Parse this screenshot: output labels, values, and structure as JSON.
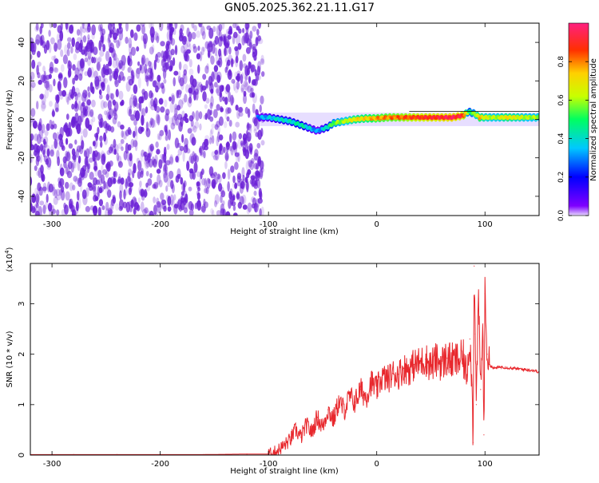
{
  "title": "GN05.2025.362.21.11.G17",
  "colors": {
    "snr_line": "#e8282d",
    "ridge_line": "#000000",
    "noise": "#6a1fd6",
    "colorbar_stops": [
      "#e6d8ff",
      "#7f00ff",
      "#0000ff",
      "#00c8ff",
      "#00ff60",
      "#c8ff00",
      "#ffd000",
      "#ff3000",
      "#ff2080"
    ]
  },
  "chart_data": [
    {
      "type": "heatmap",
      "xlabel": "Height of straight line (km)",
      "ylabel": "Frequency (Hz)",
      "xlim": [
        -320,
        150
      ],
      "ylim": [
        -50,
        50
      ],
      "xticks": [
        "-300",
        "-200",
        "-100",
        "0",
        "100"
      ],
      "yticks": [
        "-40",
        "-20",
        "0",
        "20",
        "40"
      ],
      "colorbar": {
        "label": "Normalized spectral amplitude",
        "range": [
          0,
          1
        ],
        "ticks": [
          "0.0",
          "0.2",
          "0.4",
          "0.6",
          "0.8"
        ]
      },
      "noise_region_x": [
        -320,
        -105
      ],
      "ridge": {
        "x": [
          -110,
          -100,
          -90,
          -80,
          -70,
          -60,
          -55,
          -50,
          -45,
          -40,
          -30,
          -20,
          -10,
          0,
          10,
          20,
          30,
          40,
          50,
          60,
          70,
          80,
          85,
          90,
          95,
          100,
          110,
          120,
          130,
          140,
          150
        ],
        "freq": [
          1,
          1,
          0,
          -1,
          -3,
          -5,
          -6,
          -5,
          -4,
          -2,
          -1,
          0,
          0.5,
          0.5,
          1,
          1,
          1,
          1,
          1,
          1,
          1,
          2,
          4,
          3,
          1,
          1,
          1,
          1,
          1,
          1,
          1
        ],
        "amplitude": [
          0.3,
          0.35,
          0.4,
          0.4,
          0.45,
          0.35,
          0.3,
          0.35,
          0.45,
          0.55,
          0.6,
          0.7,
          0.72,
          0.78,
          0.8,
          0.82,
          0.85,
          0.88,
          0.9,
          0.92,
          0.95,
          0.9,
          0.5,
          0.55,
          0.75,
          0.65,
          0.6,
          0.7,
          0.65,
          0.6,
          0.6
        ]
      }
    },
    {
      "type": "line",
      "xlabel": "Height of straight line (km)",
      "ylabel": "SNR (10 * v/v)",
      "yscale_label": "(x10",
      "yscale_exp": "4",
      "yscale_close": ")",
      "xlim": [
        -320,
        150
      ],
      "ylim": [
        0,
        3.8
      ],
      "xticks": [
        "-300",
        "-200",
        "-100",
        "0",
        "100"
      ],
      "yticks": [
        "0",
        "1",
        "2",
        "3"
      ],
      "series": [
        {
          "x": [
            -320,
            -280,
            -240,
            -200,
            -160,
            -120,
            -100,
            -95,
            -90,
            -85,
            -80,
            -75,
            -70,
            -65,
            -60,
            -55,
            -50,
            -45,
            -40,
            -35,
            -30,
            -25,
            -20,
            -15,
            -10,
            -5,
            0,
            5,
            10,
            15,
            20,
            25,
            30,
            35,
            40,
            45,
            50,
            55,
            60,
            65,
            70,
            75,
            80,
            83,
            86,
            88,
            89,
            90,
            91,
            92,
            94,
            96,
            98,
            99,
            100,
            102,
            104,
            108,
            115,
            125,
            135,
            145,
            150
          ],
          "y": [
            0.01,
            0.01,
            0.01,
            0.01,
            0.01,
            0.02,
            0.02,
            0.05,
            0.12,
            0.2,
            0.3,
            0.5,
            0.35,
            0.6,
            0.45,
            0.75,
            0.55,
            0.9,
            0.7,
            1.05,
            0.9,
            1.15,
            1.05,
            1.3,
            1.15,
            1.45,
            1.3,
            1.55,
            1.5,
            1.62,
            1.6,
            1.72,
            1.7,
            1.8,
            1.82,
            1.9,
            1.78,
            1.88,
            1.82,
            1.92,
            1.85,
            1.88,
            1.9,
            1.6,
            2.3,
            1.4,
            0.25,
            3.75,
            2.4,
            1.0,
            3.1,
            1.3,
            2.6,
            0.4,
            3.2,
            2.0,
            1.8,
            1.72,
            1.75,
            1.72,
            1.7,
            1.68,
            1.65
          ]
        }
      ]
    }
  ]
}
